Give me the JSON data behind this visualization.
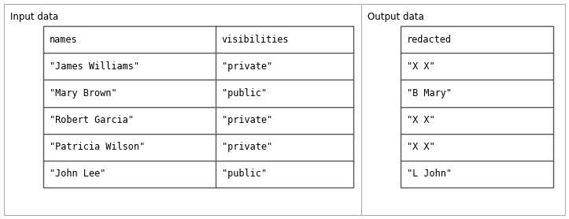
{
  "input_label": "Input data",
  "output_label": "Output data",
  "input_headers": [
    "names",
    "visibilities"
  ],
  "input_rows": [
    [
      "\"James Williams\"",
      "\"private\""
    ],
    [
      "\"Mary Brown\"",
      "\"public\""
    ],
    [
      "\"Robert Garcia\"",
      "\"private\""
    ],
    [
      "\"Patricia Wilson\"",
      "\"private\""
    ],
    [
      "\"John Lee\"",
      "\"public\""
    ]
  ],
  "output_headers": [
    "redacted"
  ],
  "output_rows": [
    [
      "\"X X\""
    ],
    [
      "\"B Mary\""
    ],
    [
      "\"X X\""
    ],
    [
      "\"X X\""
    ],
    [
      "\"L John\""
    ]
  ],
  "font_family": "monospace",
  "font_size": 8.5,
  "label_font_size": 8.5,
  "bg_color": "#ffffff",
  "border_color": "#555555",
  "text_color": "#000000",
  "outer_border_color": "#aaaaaa",
  "fig_w": 7.23,
  "fig_h": 2.78,
  "dpi": 100
}
